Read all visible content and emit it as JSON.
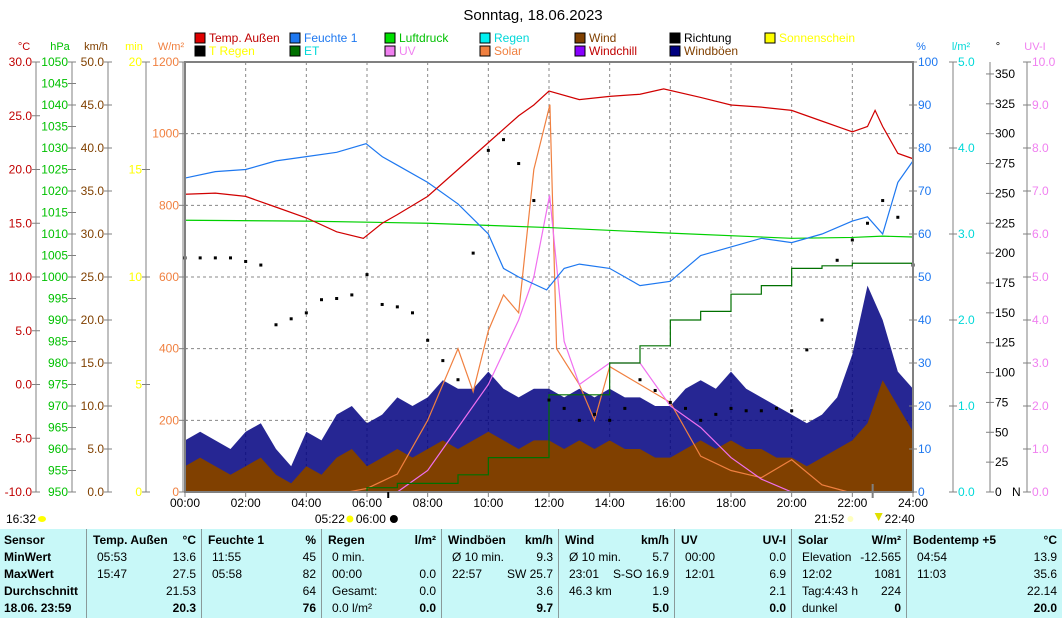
{
  "title": "Sonntag, 18.06.2023",
  "legend": [
    {
      "label": "Temp. Außen",
      "box": "#e00000",
      "text": "#c00000"
    },
    {
      "label": "T Regen",
      "box": "#000000",
      "text": "#ffff00"
    },
    {
      "label": "Feuchte 1",
      "box": "#1e78f0",
      "text": "#1e78f0"
    },
    {
      "label": "ET",
      "box": "#007000",
      "text": "#00d8d8"
    },
    {
      "label": "Luftdruck",
      "box": "#00e000",
      "text": "#00c000"
    },
    {
      "label": "UV",
      "box": "#f080f0",
      "text": "#f080f0"
    },
    {
      "label": "Regen",
      "box": "#00f0f0",
      "text": "#00d8d8"
    },
    {
      "label": "Solar",
      "box": "#f08040",
      "text": "#f08040"
    },
    {
      "label": "Wind",
      "box": "#804000",
      "text": "#804000"
    },
    {
      "label": "Windchill",
      "box": "#8800ff",
      "text": "#c00000"
    },
    {
      "label": "Richtung",
      "box": "#000000",
      "text": "#000000"
    },
    {
      "label": "Windböen",
      "box": "#000080",
      "text": "#804000"
    },
    {
      "label": "Sonnenschein",
      "box": "#ffff00",
      "text": "#ffff00"
    }
  ],
  "chart_data": {
    "type": "line",
    "title": "Sonntag, 18.06.2023",
    "x_ticks": [
      "00:00",
      "02:00",
      "04:00",
      "06:00",
      "08:00",
      "10:00",
      "12:00",
      "14:00",
      "16:00",
      "18:00",
      "20:00",
      "22:00",
      "24:00"
    ],
    "xlim_hours": [
      0,
      24
    ],
    "grid": true,
    "axes_left": [
      {
        "unit": "°C",
        "min": -10,
        "max": 30,
        "step": 5,
        "decimals": 1,
        "color": "#c00000"
      },
      {
        "unit": "hPa",
        "min": 950,
        "max": 1050,
        "step": 5,
        "decimals": 0,
        "color": "#00c000"
      },
      {
        "unit": "km/h",
        "min": 0,
        "max": 50,
        "step": 5,
        "decimals": 1,
        "color": "#804000"
      },
      {
        "unit": "min",
        "min": 0,
        "max": 20,
        "step": 5,
        "decimals": 0,
        "color": "#ffff00"
      },
      {
        "unit": "W/m²",
        "min": 0,
        "max": 1200,
        "step": 200,
        "decimals": 0,
        "color": "#f08040"
      }
    ],
    "axes_right": [
      {
        "unit": "%",
        "min": 0,
        "max": 100,
        "step": 10,
        "decimals": 0,
        "color": "#1e78f0"
      },
      {
        "unit": "l/m²",
        "min": 0,
        "max": 5,
        "step": 1,
        "decimals": 1,
        "color": "#00d8d8"
      },
      {
        "unit": "°",
        "min": 0,
        "max": 360,
        "step": 25,
        "decimals": 0,
        "color": "#000000",
        "top_tick": 350,
        "zero_label": "N"
      },
      {
        "unit": "UV-I",
        "min": 0,
        "max": 10,
        "step": 1,
        "decimals": 1,
        "color": "#f080f0"
      }
    ],
    "series": [
      {
        "name": "Temp. Außen",
        "axis": "°C",
        "color": "#d00000",
        "x": [
          0,
          1,
          2,
          3,
          4,
          5,
          5.88,
          6.5,
          7,
          8,
          9,
          10,
          11,
          11.5,
          12,
          13,
          14,
          15,
          15.78,
          17,
          18,
          19,
          20,
          21,
          22,
          22.5,
          22.75,
          23,
          23.5,
          24
        ],
        "y": [
          17.7,
          17.8,
          17.5,
          16.5,
          15.5,
          14.2,
          13.6,
          15,
          15.8,
          17.5,
          20,
          22.5,
          25,
          26,
          27.3,
          26.5,
          26.8,
          27,
          27.5,
          26.7,
          26,
          25.8,
          25.5,
          24.5,
          23.5,
          24,
          25.5,
          24,
          21.5,
          21
        ]
      },
      {
        "name": "Feuchte 1",
        "axis": "%",
        "color": "#1e78f0",
        "x": [
          0,
          1,
          2,
          3,
          4,
          5,
          5.97,
          6.5,
          7,
          8,
          9,
          10,
          10.5,
          11,
          11.92,
          12.5,
          13,
          14,
          15,
          16,
          17,
          18,
          19,
          20,
          21,
          22,
          22.5,
          23,
          23.5,
          24
        ],
        "y": [
          73,
          74.5,
          75,
          77,
          78,
          79,
          81,
          78,
          76,
          72,
          67,
          60,
          52,
          50,
          47,
          52,
          53,
          52,
          48,
          49,
          55,
          57,
          59,
          58,
          60,
          63,
          64,
          60,
          72,
          77
        ]
      },
      {
        "name": "Luftdruck",
        "axis": "hPa",
        "color": "#00d000",
        "x": [
          0,
          4,
          8,
          12,
          16,
          20,
          22,
          23,
          24
        ],
        "y": [
          1013.2,
          1013,
          1012.5,
          1011.5,
          1010.2,
          1009,
          1009.2,
          1009.5,
          1009.3
        ]
      },
      {
        "name": "ET",
        "axis": "l/m²",
        "color": "#007000",
        "step": true,
        "x": [
          0,
          6,
          7,
          9,
          10,
          12,
          14,
          15,
          16,
          17,
          18,
          19,
          20,
          21,
          22,
          24
        ],
        "y": [
          0,
          0.05,
          0.1,
          0.2,
          0.4,
          1.13,
          1.5,
          1.7,
          2.0,
          2.1,
          2.3,
          2.4,
          2.6,
          2.63,
          2.66,
          2.7
        ]
      },
      {
        "name": "Solar",
        "axis": "W/m²",
        "color": "#f08040",
        "x": [
          0,
          5.37,
          6,
          7,
          8,
          9,
          9.5,
          10,
          10.5,
          11,
          11.5,
          12.03,
          12.25,
          13,
          13.5,
          14,
          15,
          16,
          17,
          18,
          19,
          20,
          21,
          21.87,
          24
        ],
        "y": [
          0,
          0,
          10,
          50,
          200,
          400,
          280,
          450,
          550,
          500,
          900,
          1081,
          400,
          300,
          200,
          350,
          300,
          250,
          100,
          60,
          40,
          90,
          20,
          0,
          0
        ]
      },
      {
        "name": "UV",
        "axis": "UV-I",
        "color": "#f070f0",
        "x": [
          0,
          7,
          8,
          9,
          10,
          11,
          11.5,
          12.02,
          12.5,
          13,
          14,
          15,
          16,
          17,
          18,
          19,
          20,
          24
        ],
        "y": [
          0,
          0,
          0.5,
          1.5,
          2.5,
          4,
          5,
          6.9,
          3.5,
          2.5,
          3,
          3,
          2,
          1.5,
          0.8,
          0.3,
          0,
          0
        ]
      },
      {
        "name": "Windböen",
        "axis": "km/h",
        "color": "#000080",
        "interval_hours": 0.5,
        "y": [
          6,
          7,
          6,
          5,
          7,
          8,
          5,
          3,
          7,
          6,
          9,
          10,
          8,
          9,
          11,
          10,
          11,
          13,
          12,
          12,
          14,
          12,
          11,
          12,
          12,
          11,
          12,
          11,
          12,
          11,
          11,
          10,
          10,
          12,
          13,
          12,
          14,
          12,
          11,
          10,
          9,
          8,
          9,
          11,
          16,
          24,
          20,
          14,
          12
        ]
      },
      {
        "name": "Wind",
        "axis": "km/h",
        "color": "#804000",
        "interval_hours": 0.5,
        "y": [
          3,
          4,
          3,
          2,
          3,
          4,
          2,
          1,
          3,
          2,
          4,
          5,
          3,
          4,
          5,
          4,
          5,
          6,
          5,
          6,
          7,
          6,
          5,
          6,
          6,
          5,
          6,
          5,
          6,
          5,
          5,
          4,
          4,
          5,
          6,
          5,
          6,
          5,
          5,
          4,
          4,
          3,
          4,
          5,
          6,
          8,
          13,
          10,
          7
        ]
      },
      {
        "name": "Richtung",
        "axis": "°",
        "color": "#000000",
        "type": "scatter",
        "interval_hours": 0.5,
        "y": [
          196,
          196,
          196,
          196,
          193,
          190,
          140,
          145,
          150,
          161,
          162,
          165,
          182,
          157,
          155,
          150,
          127,
          110,
          94,
          200,
          286,
          295,
          275,
          244,
          77,
          70,
          60,
          65,
          60,
          70,
          94,
          85,
          75,
          70,
          60,
          65,
          70,
          68,
          68,
          70,
          68,
          119,
          144,
          194,
          211,
          225,
          244,
          230,
          190
        ]
      },
      {
        "name": "Sonnenschein",
        "axis": "min",
        "color": "#ffff00",
        "type": "bar",
        "intervals": [
          [
            6.0,
            6.5
          ],
          [
            7.0,
            7.7
          ],
          [
            8.2,
            9.4
          ],
          [
            10.0,
            12.5
          ]
        ],
        "value": 1.2
      }
    ],
    "markers": {
      "day_length": "16:32",
      "sunrise": "05:22",
      "civil": "06:00",
      "sunset": "21:52",
      "moon": "22:40"
    }
  },
  "table": {
    "columns": [
      {
        "h": [
          "Sensor",
          ""
        ],
        "rows": [
          [
            "MinWert",
            ""
          ],
          [
            "MaxWert",
            ""
          ],
          [
            "Durchschnitt",
            ""
          ],
          [
            "18.06. 23:59",
            ""
          ]
        ],
        "label_col": true
      },
      {
        "h": [
          "Temp. Außen",
          "°C"
        ],
        "rows": [
          [
            "05:53",
            "13.6"
          ],
          [
            "15:47",
            "27.5"
          ],
          [
            "",
            "21.53"
          ],
          [
            "",
            "20.3"
          ]
        ]
      },
      {
        "h": [
          "Feuchte 1",
          "%"
        ],
        "rows": [
          [
            "11:55",
            "45"
          ],
          [
            "05:58",
            "82"
          ],
          [
            "",
            "64"
          ],
          [
            "",
            "76"
          ]
        ]
      },
      {
        "h": [
          "Regen",
          "l/m²"
        ],
        "rows": [
          [
            "0 min.",
            ""
          ],
          [
            "00:00",
            "0.0"
          ],
          [
            "Gesamt:",
            "0.0"
          ],
          [
            "0.0 l/m²",
            "0.0"
          ]
        ]
      },
      {
        "h": [
          "Windböen",
          "km/h"
        ],
        "rows": [
          [
            "Ø 10 min.",
            "9.3"
          ],
          [
            "22:57",
            "SW 25.7"
          ],
          [
            "",
            "3.6"
          ],
          [
            "",
            "9.7"
          ]
        ]
      },
      {
        "h": [
          "Wind",
          "km/h"
        ],
        "rows": [
          [
            "Ø 10 min.",
            "5.7"
          ],
          [
            "23:01",
            "S-SO 16.9"
          ],
          [
            "46.3 km",
            "1.9"
          ],
          [
            "",
            "5.0"
          ]
        ]
      },
      {
        "h": [
          "UV",
          "UV-I"
        ],
        "rows": [
          [
            "00:00",
            "0.0"
          ],
          [
            "12:01",
            "6.9"
          ],
          [
            "",
            "2.1"
          ],
          [
            "",
            "0.0"
          ]
        ]
      },
      {
        "h": [
          "Solar",
          "W/m²"
        ],
        "rows": [
          [
            "Elevation",
            "-12.565"
          ],
          [
            "12:02",
            "1081"
          ],
          [
            "Tag:4:43 h",
            "224"
          ],
          [
            "dunkel",
            "0"
          ]
        ]
      },
      {
        "h": [
          "Bodentemp +5",
          "°C"
        ],
        "rows": [
          [
            "04:54",
            "13.9"
          ],
          [
            "11:03",
            "35.6"
          ],
          [
            "",
            "22.14"
          ],
          [
            "",
            "20.0"
          ]
        ]
      }
    ]
  }
}
